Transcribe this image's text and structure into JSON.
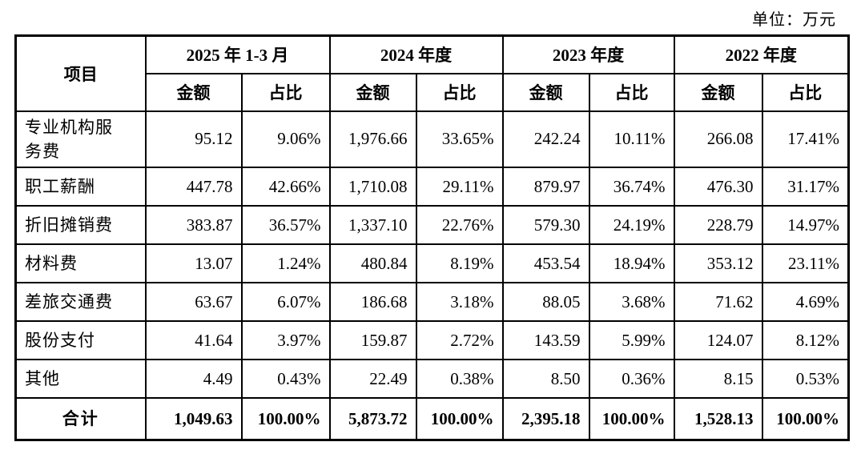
{
  "unit_label": "单位：万元",
  "colors": {
    "text": "#000000",
    "border": "#000000",
    "background": "#ffffff"
  },
  "table": {
    "item_header": "项目",
    "periods": [
      "2025 年 1-3 月",
      "2024 年度",
      "2023 年度",
      "2022 年度"
    ],
    "sub_headers": {
      "amount": "金额",
      "ratio": "占比"
    },
    "rows": [
      {
        "item": "专业机构服务费",
        "values": [
          "95.12",
          "9.06%",
          "1,976.66",
          "33.65%",
          "242.24",
          "10.11%",
          "266.08",
          "17.41%"
        ]
      },
      {
        "item": "职工薪酬",
        "values": [
          "447.78",
          "42.66%",
          "1,710.08",
          "29.11%",
          "879.97",
          "36.74%",
          "476.30",
          "31.17%"
        ]
      },
      {
        "item": "折旧摊销费",
        "values": [
          "383.87",
          "36.57%",
          "1,337.10",
          "22.76%",
          "579.30",
          "24.19%",
          "228.79",
          "14.97%"
        ]
      },
      {
        "item": "材料费",
        "values": [
          "13.07",
          "1.24%",
          "480.84",
          "8.19%",
          "453.54",
          "18.94%",
          "353.12",
          "23.11%"
        ]
      },
      {
        "item": "差旅交通费",
        "values": [
          "63.67",
          "6.07%",
          "186.68",
          "3.18%",
          "88.05",
          "3.68%",
          "71.62",
          "4.69%"
        ]
      },
      {
        "item": "股份支付",
        "values": [
          "41.64",
          "3.97%",
          "159.87",
          "2.72%",
          "143.59",
          "5.99%",
          "124.07",
          "8.12%"
        ]
      },
      {
        "item": "其他",
        "values": [
          "4.49",
          "0.43%",
          "22.49",
          "0.38%",
          "8.50",
          "0.36%",
          "8.15",
          "0.53%"
        ]
      }
    ],
    "total_row": {
      "item": "合计",
      "values": [
        "1,049.63",
        "100.00%",
        "5,873.72",
        "100.00%",
        "2,395.18",
        "100.00%",
        "1,528.13",
        "100.00%"
      ]
    }
  }
}
